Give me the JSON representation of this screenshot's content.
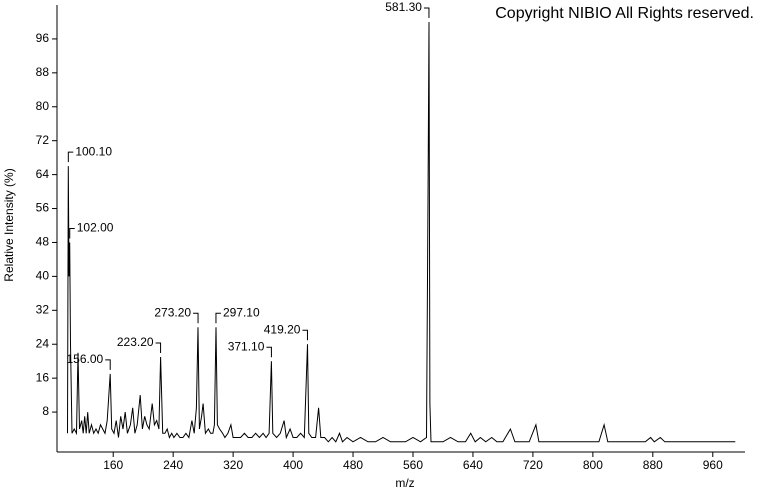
{
  "chart_data": {
    "type": "line",
    "annotation": "Copyright NIBIO All Rights reserved.",
    "x_label": "m/z",
    "y_label": "Relative Intensity (%)",
    "xlim": [
      85,
      1003
    ],
    "ylim": [
      0,
      104
    ],
    "xticks": [
      160,
      240,
      320,
      400,
      480,
      560,
      640,
      720,
      800,
      880,
      960
    ],
    "yticks": [
      8,
      16,
      24,
      32,
      40,
      48,
      56,
      64,
      72,
      80,
      88,
      96
    ],
    "series": [
      {
        "color": "#000000",
        "x": [
          99,
          100.1,
          101,
          102,
          103,
          105,
          108,
          111,
          113,
          115,
          118,
          120,
          122,
          124,
          126,
          128,
          131,
          134,
          137,
          140,
          143,
          146,
          149,
          152,
          156,
          158,
          161,
          164,
          167,
          170,
          173,
          176,
          179,
          183,
          186,
          189,
          192,
          196,
          199,
          202,
          205,
          208,
          212,
          215,
          218,
          221,
          223.2,
          226,
          229,
          232,
          235,
          238,
          241,
          245,
          249,
          253,
          257,
          261,
          265,
          268,
          271,
          273.2,
          275,
          278,
          280,
          283,
          287,
          290,
          293,
          295,
          297.1,
          299,
          302,
          306,
          309,
          313,
          317,
          320,
          325,
          330,
          335,
          340,
          345,
          350,
          355,
          360,
          364,
          368,
          371.1,
          373,
          378,
          383,
          388,
          391,
          396,
          400,
          405,
          410,
          415,
          419.2,
          421,
          425,
          430,
          434,
          437,
          442,
          447,
          452,
          457,
          462,
          466,
          472,
          480,
          490,
          500,
          510,
          520,
          530,
          540,
          550,
          560,
          570,
          578,
          580,
          581.3,
          582.5,
          584,
          590,
          600,
          610,
          620,
          630,
          637,
          643,
          650,
          657,
          665,
          672,
          680,
          690,
          696,
          705,
          715,
          724,
          728,
          740,
          750,
          760,
          770,
          780,
          790,
          800,
          808,
          815,
          820,
          830,
          840,
          850,
          860,
          870,
          877,
          882,
          890,
          896,
          905,
          915,
          925,
          935,
          945,
          955,
          965,
          975,
          985,
          990
        ],
        "values": [
          3,
          66,
          40,
          48,
          24,
          3,
          4,
          3,
          22,
          4,
          6,
          3,
          7,
          3,
          8,
          3,
          5,
          3,
          4,
          3,
          5,
          4,
          3,
          6,
          17,
          4,
          3,
          6,
          2,
          7,
          4,
          8,
          3,
          5,
          9,
          3,
          5,
          12,
          4,
          7,
          5,
          4,
          10,
          5,
          6,
          4,
          21,
          3,
          3,
          4,
          2,
          3,
          2,
          3,
          2,
          2,
          3,
          2,
          6,
          3,
          9,
          28,
          4,
          7,
          10,
          3,
          4,
          3,
          3,
          5,
          28,
          5,
          4,
          3,
          2,
          3,
          5,
          2,
          2,
          2,
          3,
          2,
          2,
          3,
          2,
          3,
          2,
          3,
          20,
          3,
          2,
          3,
          6,
          2,
          4,
          2,
          2,
          3,
          2,
          24,
          3,
          2,
          2,
          9,
          2,
          2,
          1,
          2,
          1,
          3,
          1,
          2,
          1,
          2,
          1,
          1,
          2,
          1,
          1,
          1,
          2,
          1,
          2,
          58,
          100,
          10,
          1,
          1,
          1,
          2,
          1,
          1,
          3,
          1,
          2,
          1,
          2,
          1,
          1,
          4,
          1,
          1,
          1,
          5,
          1,
          1,
          1,
          1,
          1,
          1,
          1,
          1,
          1,
          5,
          1,
          1,
          1,
          1,
          1,
          1,
          2,
          1,
          2,
          1,
          1,
          1,
          1,
          1,
          1,
          1,
          1,
          1,
          1,
          1
        ]
      }
    ],
    "peaks": [
      {
        "x": 100.1,
        "y": 66,
        "label": "100.10"
      },
      {
        "x": 102,
        "y": 48,
        "label": "102.00"
      },
      {
        "x": 156,
        "y": 17,
        "label": "156.00"
      },
      {
        "x": 223.2,
        "y": 21,
        "label": "223.20"
      },
      {
        "x": 273.2,
        "y": 28,
        "label": "273.20"
      },
      {
        "x": 297.1,
        "y": 28,
        "label": "297.10"
      },
      {
        "x": 371.1,
        "y": 20,
        "label": "371.10"
      },
      {
        "x": 419.2,
        "y": 24,
        "label": "419.20"
      },
      {
        "x": 581.3,
        "y": 100,
        "label": "581.30"
      }
    ]
  }
}
